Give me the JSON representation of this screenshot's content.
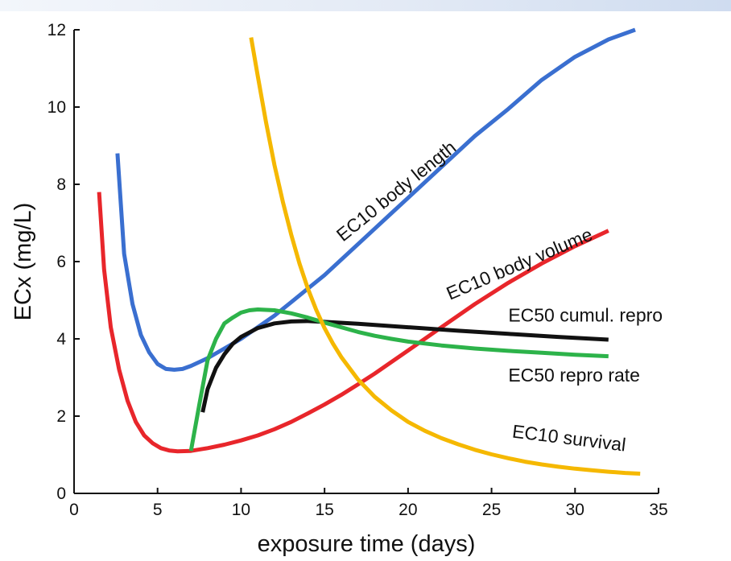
{
  "chart_data": {
    "type": "line",
    "xlabel": "exposure time (days)",
    "ylabel": "ECx (mg/L)",
    "xlim": [
      0,
      35
    ],
    "ylim": [
      0,
      12
    ],
    "xticks": [
      0,
      5,
      10,
      15,
      20,
      25,
      30,
      35
    ],
    "yticks": [
      0,
      2,
      4,
      6,
      8,
      10,
      12
    ],
    "grid": false,
    "legend": "none (series labelled directly on curves)",
    "series": [
      {
        "name": "EC10 body length",
        "color": "#3a6fd0",
        "points": [
          [
            2.6,
            8.8
          ],
          [
            3.0,
            6.2
          ],
          [
            3.5,
            4.9
          ],
          [
            4.0,
            4.1
          ],
          [
            4.5,
            3.65
          ],
          [
            5.0,
            3.35
          ],
          [
            5.5,
            3.22
          ],
          [
            6.0,
            3.2
          ],
          [
            6.5,
            3.22
          ],
          [
            7.0,
            3.3
          ],
          [
            8.0,
            3.5
          ],
          [
            9.0,
            3.75
          ],
          [
            10.0,
            4.0
          ],
          [
            11.0,
            4.3
          ],
          [
            12.0,
            4.6
          ],
          [
            13.0,
            4.95
          ],
          [
            14.0,
            5.3
          ],
          [
            15.0,
            5.65
          ],
          [
            16.0,
            6.05
          ],
          [
            17.0,
            6.45
          ],
          [
            18.0,
            6.85
          ],
          [
            19.0,
            7.25
          ],
          [
            20.0,
            7.65
          ],
          [
            22.0,
            8.45
          ],
          [
            24.0,
            9.25
          ],
          [
            26.0,
            9.95
          ],
          [
            28.0,
            10.7
          ],
          [
            30.0,
            11.3
          ],
          [
            32.0,
            11.75
          ],
          [
            33.6,
            12.0
          ]
        ]
      },
      {
        "name": "EC10 body volume",
        "color": "#e8262b",
        "points": [
          [
            1.5,
            7.8
          ],
          [
            1.8,
            5.8
          ],
          [
            2.2,
            4.3
          ],
          [
            2.7,
            3.2
          ],
          [
            3.2,
            2.4
          ],
          [
            3.7,
            1.85
          ],
          [
            4.2,
            1.5
          ],
          [
            4.7,
            1.3
          ],
          [
            5.2,
            1.17
          ],
          [
            5.7,
            1.11
          ],
          [
            6.2,
            1.09
          ],
          [
            7.0,
            1.1
          ],
          [
            8.0,
            1.17
          ],
          [
            9.0,
            1.26
          ],
          [
            10.0,
            1.37
          ],
          [
            11.0,
            1.5
          ],
          [
            12.0,
            1.66
          ],
          [
            13.0,
            1.85
          ],
          [
            14.0,
            2.07
          ],
          [
            15.0,
            2.3
          ],
          [
            16.0,
            2.55
          ],
          [
            17.0,
            2.82
          ],
          [
            18.0,
            3.1
          ],
          [
            19.0,
            3.4
          ],
          [
            20.0,
            3.7
          ],
          [
            22.0,
            4.3
          ],
          [
            24.0,
            4.9
          ],
          [
            26.0,
            5.45
          ],
          [
            28.0,
            5.95
          ],
          [
            30.0,
            6.4
          ],
          [
            32.0,
            6.8
          ]
        ]
      },
      {
        "name": "EC50 cumul. repro",
        "color": "#111111",
        "points": [
          [
            7.7,
            2.1
          ],
          [
            8.0,
            2.7
          ],
          [
            8.5,
            3.25
          ],
          [
            9.0,
            3.6
          ],
          [
            9.5,
            3.87
          ],
          [
            10.0,
            4.05
          ],
          [
            11.0,
            4.28
          ],
          [
            12.0,
            4.4
          ],
          [
            13.0,
            4.45
          ],
          [
            14.0,
            4.46
          ],
          [
            15.0,
            4.44
          ],
          [
            17.0,
            4.39
          ],
          [
            20.0,
            4.3
          ],
          [
            23.0,
            4.21
          ],
          [
            26.0,
            4.13
          ],
          [
            29.0,
            4.05
          ],
          [
            32.0,
            3.98
          ]
        ]
      },
      {
        "name": "EC50 repro rate",
        "color": "#2db34a",
        "points": [
          [
            7.0,
            1.1
          ],
          [
            7.5,
            2.3
          ],
          [
            8.0,
            3.45
          ],
          [
            8.5,
            4.0
          ],
          [
            9.0,
            4.4
          ],
          [
            9.5,
            4.55
          ],
          [
            10.0,
            4.68
          ],
          [
            10.5,
            4.74
          ],
          [
            11.0,
            4.76
          ],
          [
            12.0,
            4.74
          ],
          [
            13.0,
            4.66
          ],
          [
            14.0,
            4.55
          ],
          [
            15.0,
            4.42
          ],
          [
            16.0,
            4.3
          ],
          [
            17.0,
            4.18
          ],
          [
            18.0,
            4.08
          ],
          [
            19.0,
            4.0
          ],
          [
            20.0,
            3.93
          ],
          [
            22.0,
            3.83
          ],
          [
            24.0,
            3.75
          ],
          [
            26.0,
            3.69
          ],
          [
            28.0,
            3.64
          ],
          [
            30.0,
            3.59
          ],
          [
            32.0,
            3.55
          ]
        ]
      },
      {
        "name": "EC10 survival",
        "color": "#f5b800",
        "points": [
          [
            10.6,
            11.8
          ],
          [
            11.0,
            10.8
          ],
          [
            11.5,
            9.6
          ],
          [
            12.0,
            8.5
          ],
          [
            12.5,
            7.55
          ],
          [
            13.0,
            6.7
          ],
          [
            13.5,
            5.95
          ],
          [
            14.0,
            5.3
          ],
          [
            14.5,
            4.75
          ],
          [
            15.0,
            4.28
          ],
          [
            15.5,
            3.88
          ],
          [
            16.0,
            3.53
          ],
          [
            17.0,
            2.95
          ],
          [
            18.0,
            2.5
          ],
          [
            19.0,
            2.15
          ],
          [
            20.0,
            1.85
          ],
          [
            21.0,
            1.62
          ],
          [
            22.0,
            1.43
          ],
          [
            23.0,
            1.27
          ],
          [
            24.0,
            1.13
          ],
          [
            25.0,
            1.01
          ],
          [
            26.0,
            0.91
          ],
          [
            27.0,
            0.82
          ],
          [
            28.0,
            0.75
          ],
          [
            29.0,
            0.69
          ],
          [
            30.0,
            0.64
          ],
          [
            31.0,
            0.6
          ],
          [
            32.0,
            0.56
          ],
          [
            33.0,
            0.53
          ],
          [
            33.9,
            0.51
          ]
        ]
      }
    ],
    "labels": [
      {
        "text": "EC10 body length",
        "x": 16.1,
        "y": 6.5,
        "angle": -39
      },
      {
        "text": "EC10 body volume",
        "x": 22.5,
        "y": 5.0,
        "angle": -23
      },
      {
        "text": "EC50 cumul. repro",
        "x": 26.0,
        "y": 4.45,
        "angle": 0
      },
      {
        "text": "EC50 repro rate",
        "x": 26.0,
        "y": 2.9,
        "angle": 0
      },
      {
        "text": "EC10 survival",
        "x": 26.2,
        "y": 1.45,
        "angle": 7
      }
    ]
  }
}
